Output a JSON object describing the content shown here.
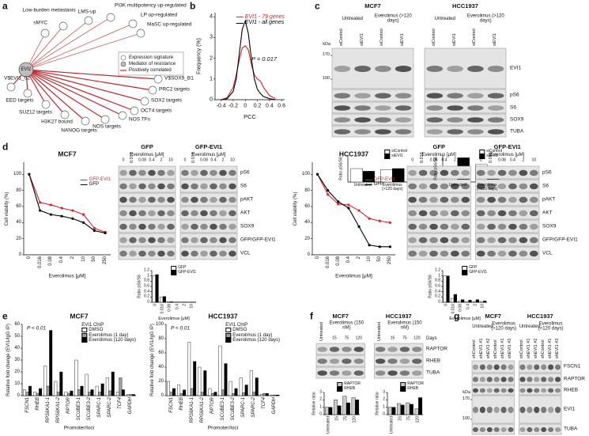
{
  "panel_labels": [
    "a",
    "b",
    "c",
    "d",
    "e",
    "f",
    "g"
  ],
  "network": {
    "center": "EVI1",
    "nodes": [
      "sMYC",
      "Low-burden metastasis",
      "LMS-up",
      "PI3K multipotency up-regulated",
      "LP up-regulated",
      "MaSC up-regulated",
      "V$SOX9_B1",
      "PRC2 targets",
      "SOX2 targets",
      "OCT4 targets",
      "NOS TFs",
      "NOS targets",
      "NANOG targets",
      "H3K27 bound",
      "SUZ12 targets",
      "EED targets",
      "V$EVI1_02"
    ],
    "legend": [
      "Expression signature",
      "Mediator of resistance",
      "Positively correlated"
    ],
    "edge_color": "#c0282d"
  },
  "chart_data": [
    {
      "type": "line",
      "xlabel": "PCC",
      "ylabel": "Frequency (%)",
      "x": [
        -0.4,
        -0.3,
        -0.2,
        -0.15,
        -0.1,
        -0.05,
        0,
        0.05,
        0.1,
        0.15,
        0.2,
        0.25,
        0.3,
        0.4,
        0.5
      ],
      "series": [
        {
          "name": "EVI1 - 79 genes",
          "color": "#d7262b",
          "values": [
            0,
            0.1,
            0.6,
            1.2,
            1.9,
            2.5,
            2.6,
            2.4,
            1.7,
            1.2,
            1.0,
            0.9,
            0.6,
            0.2,
            0.05
          ]
        },
        {
          "name": "EVI1 - all genes",
          "color": "#000000",
          "values": [
            0,
            0.05,
            0.4,
            1.0,
            2.2,
            3.4,
            3.8,
            3.2,
            2.0,
            1.0,
            0.5,
            0.3,
            0.15,
            0.05,
            0
          ]
        }
      ],
      "xlim": [
        -0.5,
        0.65
      ],
      "xticks": [
        -0.4,
        -0.2,
        0,
        0.2,
        0.4,
        0.6
      ],
      "ylim": [
        0,
        4.2
      ],
      "yticks": [
        0,
        1,
        2,
        3,
        4
      ],
      "annotation": "P = 0.017",
      "legend": "upper right"
    },
    {
      "type": "bar",
      "ylabel": "Ratio pS6/S6",
      "categories": [
        "Untreated",
        "Everolimus (>120 days)"
      ],
      "series": [
        {
          "name": "siControl",
          "color": "#ffffff",
          "values": [
            1,
            0.9
          ]
        },
        {
          "name": "siEVI1",
          "color": "#000000",
          "values": [
            0.8,
            1.0
          ]
        }
      ],
      "ylim": [
        0,
        2
      ],
      "legend": "upper right"
    },
    {
      "type": "bar",
      "ylabel": "Ratio pS6/S6",
      "categories": [
        "Untreated",
        "Everolimus (>120 days)"
      ],
      "series": [
        {
          "name": "siControl",
          "color": "#ffffff",
          "values": [
            1,
            1.3
          ]
        },
        {
          "name": "siEVI1",
          "color": "#000000",
          "values": [
            1.8,
            0.4
          ]
        }
      ],
      "ylim": [
        0,
        2
      ],
      "legend": "upper right"
    },
    {
      "type": "line",
      "title": "MCF7",
      "xlabel": "Everolimus [μM]",
      "ylabel": "Cell viability (%)",
      "categories": [
        "0",
        "0.016",
        "0.08",
        "0.4",
        "2",
        "10",
        "50",
        "250"
      ],
      "series": [
        {
          "name": "GFP-EVI1",
          "color": "#d7262b",
          "values": [
            100,
            65,
            62,
            58,
            55,
            50,
            33,
            28
          ]
        },
        {
          "name": "GFP",
          "color": "#000000",
          "values": [
            100,
            55,
            50,
            48,
            45,
            40,
            30,
            27
          ]
        }
      ],
      "ylim": [
        0,
        115
      ],
      "yticks": [
        0,
        20,
        40,
        60,
        80,
        100
      ],
      "legend": "upper right"
    },
    {
      "type": "bar",
      "xlabel": "Everolimus [μM]",
      "ylabel": "Ratio pS6/S6",
      "categories": [
        "0",
        "0.016",
        "0.08",
        "0.4",
        "2",
        "10"
      ],
      "series": [
        {
          "name": "GFP",
          "color": "#ffffff",
          "values": [
            1,
            0.2,
            0.02,
            0.01,
            0.01,
            0.01
          ]
        },
        {
          "name": "GFP-EVI1",
          "color": "#000000",
          "values": [
            1.05,
            0.22,
            0.02,
            0.01,
            0.01,
            0.01
          ]
        }
      ],
      "ylim": [
        0,
        1.2
      ],
      "yticks": [
        0,
        0.2,
        0.4,
        0.6,
        0.8,
        1,
        1.2
      ],
      "legend": "upper right"
    },
    {
      "type": "line",
      "title": "HCC1937",
      "xlabel": "Everolimus [μM]",
      "ylabel": "Cell viability (%)",
      "categories": [
        "0",
        "0.016",
        "0.08",
        "0.4",
        "2",
        "10",
        "50",
        "250"
      ],
      "series": [
        {
          "name": "GFP-EVI1",
          "color": "#d7262b",
          "values": [
            100,
            75,
            63,
            62,
            55,
            45,
            42,
            40
          ]
        },
        {
          "name": "GFP",
          "color": "#000000",
          "values": [
            100,
            80,
            66,
            58,
            35,
            12,
            10,
            10
          ]
        }
      ],
      "ylim": [
        0,
        115
      ],
      "yticks": [
        0,
        20,
        40,
        60,
        80,
        100
      ],
      "legend": "upper right"
    },
    {
      "type": "bar",
      "xlabel": "Everolimus [μM]",
      "ylabel": "Ratio pS6/S6",
      "categories": [
        "0",
        "0.016",
        "0.08",
        "0.4",
        "2",
        "10"
      ],
      "series": [
        {
          "name": "GFP",
          "color": "#ffffff",
          "values": [
            1,
            0.15,
            0.05,
            0.03,
            0.03,
            0.03
          ]
        },
        {
          "name": "GFP-EVI1",
          "color": "#000000",
          "values": [
            1,
            0.3,
            0.1,
            0.08,
            0.1,
            0.05
          ]
        }
      ],
      "ylim": [
        0,
        1.2
      ],
      "yticks": [
        0,
        0.2,
        0.4,
        0.6,
        0.8,
        1,
        1.2
      ],
      "legend": "upper right"
    },
    {
      "type": "bar",
      "title": "MCF7",
      "xlabel": "Promoter/loci",
      "ylabel": "Relative fold change (EVI1/IgG IP)",
      "categories": [
        "FSCN1",
        "RHEB",
        "RPS6KA1-1",
        "RPS6KA1-2",
        "RPTOR",
        "SCUBE3-1",
        "SCUBE3-2",
        "SPARC-1",
        "SPARC-2",
        "TCF4",
        "GAPDH"
      ],
      "series": [
        {
          "name": "DMSO",
          "color": "#ffffff",
          "values": [
            5,
            3,
            25,
            12,
            3,
            30,
            18,
            8,
            15,
            3,
            1
          ]
        },
        {
          "name": "Everolimus (1 day)",
          "color": "#9e9e9e",
          "values": [
            3,
            2,
            8,
            3,
            2,
            5,
            3,
            3,
            4,
            15,
            1
          ]
        },
        {
          "name": "Everolimus (120 days)",
          "color": "#000000",
          "values": [
            8,
            6,
            55,
            20,
            4,
            8,
            5,
            10,
            20,
            5,
            1
          ]
        }
      ],
      "ylim": [
        0,
        60
      ],
      "yticks": [
        0,
        10,
        20,
        30,
        40,
        50,
        60
      ],
      "legend": "upper right",
      "legend_title": "EVI1 ChIP",
      "annotation": "P < 0.01"
    },
    {
      "type": "bar",
      "title": "HCC1937",
      "xlabel": "Promoter/loci",
      "ylabel": "Relative fold change (EVI1/IgG IP)",
      "categories": [
        "FSCN1",
        "RHEB",
        "RPS6KA1-1",
        "RPS6KA1-2",
        "RPTOR",
        "SCUBE3-1",
        "SCUBE3-2",
        "SPARC-1",
        "SPARC-2",
        "TCF4",
        "GAPDH"
      ],
      "series": [
        {
          "name": "DMSO",
          "color": "#ffffff",
          "values": [
            20,
            15,
            75,
            40,
            10,
            70,
            20,
            25,
            35,
            2,
            1
          ]
        },
        {
          "name": "Everolimus (1 day)",
          "color": "#9e9e9e",
          "values": [
            5,
            3,
            10,
            5,
            3,
            8,
            3,
            4,
            5,
            3,
            1
          ]
        },
        {
          "name": "Everolimus (120 days)",
          "color": "#000000",
          "values": [
            10,
            8,
            48,
            35,
            5,
            45,
            10,
            15,
            25,
            3,
            1
          ]
        }
      ],
      "ylim": [
        0,
        100
      ],
      "yticks": [
        0,
        20,
        40,
        60,
        80,
        100
      ],
      "legend": "upper right",
      "legend_title": "EVI1 ChIP",
      "annotation": "P < 0.01"
    },
    {
      "type": "bar",
      "ylabel": "Relative ratio",
      "categories": [
        "Untreated",
        "15",
        "75",
        "120"
      ],
      "series": [
        {
          "name": "RAPTOR",
          "color": "#cccccc",
          "values": [
            1,
            2,
            2.5,
            2.3
          ]
        },
        {
          "name": "RHEB",
          "color": "#000000",
          "values": [
            1,
            1.2,
            1.6,
            2
          ]
        }
      ],
      "ylim": [
        0,
        3
      ],
      "yticks": [
        0,
        1,
        2,
        3
      ],
      "legend": "upper right"
    },
    {
      "type": "bar",
      "ylabel": "Relative ratio",
      "categories": [
        "Untreated",
        "15",
        "75",
        "120"
      ],
      "series": [
        {
          "name": "RAPTOR",
          "color": "#cccccc",
          "values": [
            1,
            1.5,
            1.6,
            0.8
          ]
        },
        {
          "name": "RHEB",
          "color": "#000000",
          "values": [
            1,
            1.3,
            1.4,
            2.3
          ]
        }
      ],
      "ylim": [
        0,
        3
      ],
      "yticks": [
        0,
        1,
        2,
        3
      ],
      "legend": "upper right"
    }
  ],
  "blots": [
    {
      "groups": [
        {
          "label": "MCF7",
          "subgroups": [
            {
              "label": "Untreated",
              "lanes": [
                "siControl",
                "siEVI1"
              ]
            },
            {
              "label": "Everolimus (>120 days)",
              "lanes": [
                "siControl",
                "siEVI1"
              ]
            }
          ]
        },
        {
          "label": "HCC1937",
          "subgroups": [
            {
              "label": "Untreated",
              "lanes": [
                "siControl",
                "siEVI1"
              ]
            },
            {
              "label": "Everolimus (>120 days)",
              "lanes": [
                "siControl",
                "siEVI1"
              ]
            }
          ]
        }
      ],
      "proteins": [
        "EVI1",
        "pS6",
        "S6",
        "SOX9",
        "TUBA"
      ],
      "marker_title": "kDa",
      "markers": [
        170,
        100
      ]
    },
    {
      "groups": [
        {
          "label": "GFP",
          "subgroups": [
            {
              "label": "Everolimus [μM]",
              "lanes": [
                "0",
                "0.016",
                "0.08",
                "0.4",
                "2",
                "10"
              ]
            }
          ]
        },
        {
          "label": "GFP-EVI1",
          "subgroups": [
            {
              "label": "Everolimus [μM]",
              "lanes": [
                "0",
                "0.016",
                "0.08",
                "0.4",
                "2",
                "10"
              ]
            }
          ]
        }
      ],
      "proteins": [
        "pS6",
        "S6",
        "pAKT",
        "AKT",
        "SOX9",
        "GFP/GFP-EVI1",
        "VCL"
      ]
    },
    {
      "groups": [
        {
          "label": "GFP",
          "subgroups": [
            {
              "label": "Everolimus [μM]",
              "lanes": [
                "0",
                "0.016",
                "0.08",
                "0.4",
                "2",
                "10"
              ]
            }
          ]
        },
        {
          "label": "GFP-EVI1",
          "subgroups": [
            {
              "label": "Everolimus [μM]",
              "lanes": [
                "0",
                "0.016",
                "0.08",
                "0.4",
                "2",
                "10"
              ]
            }
          ]
        }
      ],
      "proteins": [
        "pS6",
        "S6",
        "pAKT",
        "AKT",
        "SOX9",
        "GFP/GFP-EVI1",
        "VCL"
      ]
    },
    {
      "groups": [
        {
          "label": "MCF7",
          "subgroups": [
            {
              "lanes": [
                "Untreated"
              ]
            },
            {
              "label": "Everolimus (150 nM)",
              "lanes": [
                "15",
                "75",
                "120"
              ]
            }
          ]
        },
        {
          "label": "HCC1937",
          "subgroups": [
            {
              "lanes": [
                "Untreated"
              ]
            },
            {
              "label": "Everolimus (150 nM)",
              "lanes": [
                "15",
                "75",
                "120"
              ]
            }
          ]
        }
      ],
      "lane_unit": "Days",
      "proteins": [
        "RAPTOR",
        "RHEB",
        "TUBA"
      ]
    },
    {
      "groups": [
        {
          "label": "MCF7",
          "subgroups": [
            {
              "label": "Untreated",
              "lanes": [
                "shControl",
                "shEVI1 #1",
                "shEVI1 #2"
              ]
            },
            {
              "label": "Everolimus (>120 days)",
              "lanes": [
                "shControl",
                "shEVI1 #1",
                "shEVI1 #2"
              ]
            }
          ]
        },
        {
          "label": "HCC1937",
          "subgroups": [
            {
              "label": "Untreated",
              "lanes": [
                "shControl",
                "shEVI1 #1",
                "shEVI1 #2"
              ]
            },
            {
              "label": "Everolimus (>120 days)",
              "lanes": [
                "shControl",
                "shEVI1 #1",
                "shEVI1 #2"
              ]
            }
          ]
        }
      ],
      "proteins": [
        "FSCN1",
        "RAPTOR",
        "RHEB",
        "EVI1",
        "TUBA"
      ],
      "marker_title": "kDa",
      "markers": [
        170,
        100
      ]
    }
  ]
}
